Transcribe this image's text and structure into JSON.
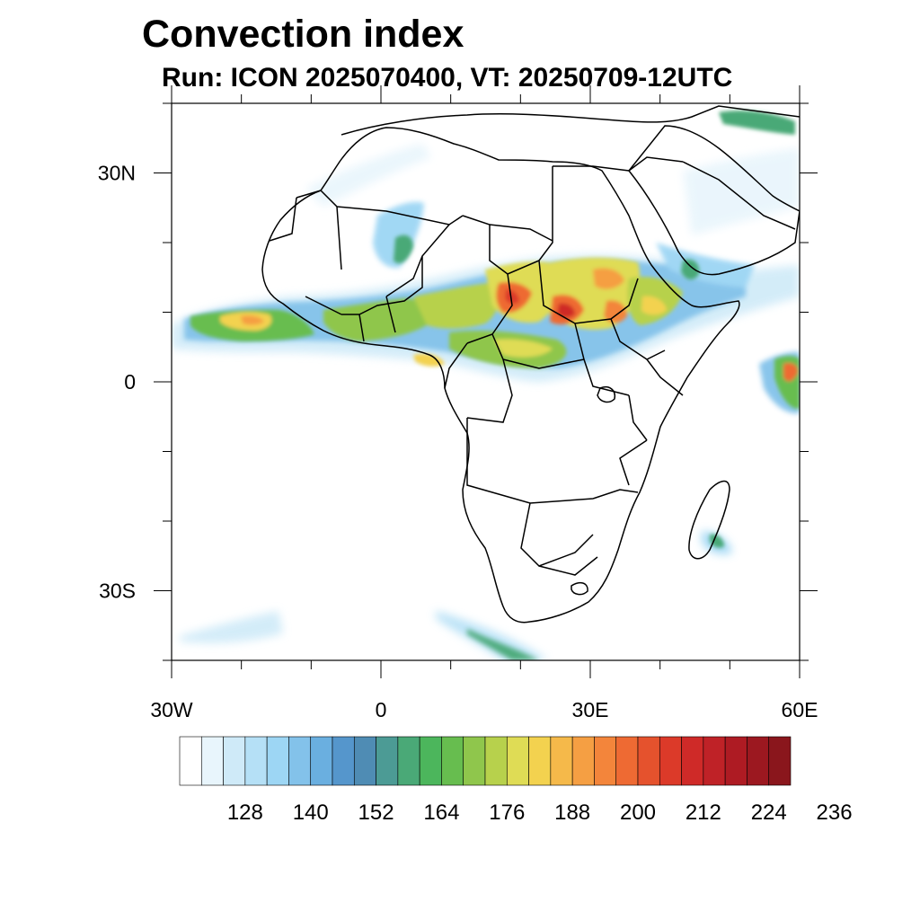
{
  "title": "Convection index",
  "subtitle": "Run: ICON 2025070400,  VT: 20250709-12UTC",
  "map": {
    "lon_range": [
      -30,
      60
    ],
    "lat_range": [
      -40,
      40
    ],
    "lon_ticks": [
      {
        "value": -30,
        "label": "30W"
      },
      {
        "value": 0,
        "label": "0"
      },
      {
        "value": 30,
        "label": "30E"
      },
      {
        "value": 60,
        "label": "60E"
      }
    ],
    "lat_ticks": [
      {
        "value": 30,
        "label": "30N"
      },
      {
        "value": 0,
        "label": "0"
      },
      {
        "value": -30,
        "label": "30S"
      }
    ]
  },
  "colorbar": {
    "colors": [
      "#ffffff",
      "#e8f5fc",
      "#cfeaf8",
      "#b5e0f6",
      "#9dd6f4",
      "#83c2ea",
      "#6aafe0",
      "#5596cc",
      "#4f8cb4",
      "#4c9b95",
      "#4aa977",
      "#4cb65c",
      "#67bd4f",
      "#8fc64c",
      "#b7d14c",
      "#dfdc55",
      "#f3d24f",
      "#f5b94a",
      "#f59f43",
      "#f3853b",
      "#ee6a33",
      "#e5522d",
      "#dc3a29",
      "#cf2a28",
      "#bf2227",
      "#ae1b23",
      "#9c1820",
      "#8a161c"
    ],
    "labels": [
      "128",
      "140",
      "152",
      "164",
      "176",
      "188",
      "200",
      "212",
      "224",
      "236"
    ]
  }
}
